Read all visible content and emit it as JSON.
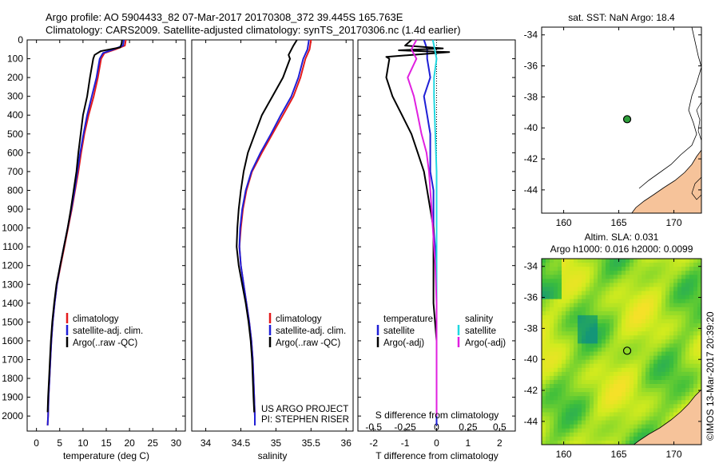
{
  "header": {
    "line1": "Argo profile: AO 5904433_82 07-Mar-2017 20170308_372 39.445S 165.763E",
    "line2": "Climatology: CARS2009. Satellite-adjusted climatology: synTS_20170306.nc (1.4d earlier)"
  },
  "colors": {
    "climatology": "#e41a1c",
    "satellite": "#1f1fd6",
    "argo": "#000000",
    "salinity_satellite": "#20d8e0",
    "salinity_argo": "#e020e0",
    "land": "#f6c39a",
    "station_marker": "#2e9e3a"
  },
  "credits": {
    "project": "US ARGO PROJECT",
    "pi": "PI: STEPHEN RISER",
    "imos_stamp": "©IMOS 13-Mar-2017 20:39:20"
  },
  "chart_data": [
    {
      "id": "temperature",
      "type": "line",
      "xlabel": "temperature (deg C)",
      "ylabel": "",
      "xlim": [
        -2,
        32
      ],
      "ylim": [
        2080,
        0
      ],
      "xticks": [
        0,
        5,
        10,
        15,
        20,
        25,
        30
      ],
      "yticks": [
        0,
        100,
        200,
        300,
        400,
        500,
        600,
        700,
        800,
        900,
        1000,
        1100,
        1200,
        1300,
        1400,
        1500,
        1600,
        1700,
        1800,
        1900,
        2000
      ],
      "legend": [
        "climatology",
        "satellite-adj. clim.",
        "Argo(..raw -QC)"
      ],
      "series": [
        {
          "name": "climatology",
          "color": "#e41a1c",
          "points": [
            [
              19.2,
              0
            ],
            [
              19,
              30
            ],
            [
              17,
              50
            ],
            [
              14.6,
              70
            ],
            [
              13.9,
              100
            ],
            [
              13.2,
              200
            ],
            [
              12.3,
              300
            ],
            [
              11.2,
              400
            ],
            [
              10.3,
              500
            ],
            [
              9.6,
              600
            ],
            [
              9,
              700
            ],
            [
              8.3,
              800
            ],
            [
              7.6,
              900
            ],
            [
              6.8,
              1000
            ],
            [
              6,
              1100
            ],
            [
              5.2,
              1200
            ],
            [
              4.4,
              1300
            ],
            [
              3.9,
              1400
            ],
            [
              3.5,
              1500
            ],
            [
              3.2,
              1600
            ],
            [
              3,
              1700
            ],
            [
              2.8,
              1800
            ],
            [
              2.6,
              1900
            ],
            [
              2.5,
              2000
            ],
            [
              2.4,
              2050
            ]
          ]
        },
        {
          "name": "satellite-adj. clim.",
          "color": "#1f1fd6",
          "points": [
            [
              18.8,
              0
            ],
            [
              18.6,
              30
            ],
            [
              16.6,
              50
            ],
            [
              14.3,
              70
            ],
            [
              13.6,
              100
            ],
            [
              12.9,
              200
            ],
            [
              11.9,
              300
            ],
            [
              10.9,
              400
            ],
            [
              10.1,
              500
            ],
            [
              9.4,
              600
            ],
            [
              8.8,
              700
            ],
            [
              8.2,
              800
            ],
            [
              7.5,
              900
            ],
            [
              6.7,
              1000
            ],
            [
              5.9,
              1100
            ],
            [
              5.1,
              1200
            ],
            [
              4.4,
              1300
            ],
            [
              3.9,
              1400
            ],
            [
              3.5,
              1500
            ],
            [
              3.2,
              1600
            ],
            [
              3,
              1700
            ],
            [
              2.8,
              1800
            ],
            [
              2.6,
              1900
            ],
            [
              2.5,
              2000
            ],
            [
              2.4,
              2050
            ]
          ]
        },
        {
          "name": "Argo(..raw -QC)",
          "color": "#000000",
          "points": [
            [
              18.4,
              0
            ],
            [
              18.3,
              20
            ],
            [
              18,
              40
            ],
            [
              13.8,
              60
            ],
            [
              12.5,
              80
            ],
            [
              12.2,
              100
            ],
            [
              11.5,
              200
            ],
            [
              10.9,
              300
            ],
            [
              10,
              400
            ],
            [
              9.5,
              500
            ],
            [
              9,
              600
            ],
            [
              8.6,
              700
            ],
            [
              8,
              800
            ],
            [
              7.4,
              900
            ],
            [
              6.7,
              1000
            ],
            [
              5.9,
              1100
            ],
            [
              5.1,
              1200
            ],
            [
              4.3,
              1300
            ],
            [
              3.8,
              1400
            ],
            [
              3.4,
              1500
            ],
            [
              3.1,
              1600
            ],
            [
              2.9,
              1700
            ],
            [
              2.7,
              1800
            ],
            [
              2.5,
              1900
            ],
            [
              2.4,
              1980
            ]
          ]
        }
      ]
    },
    {
      "id": "salinity",
      "type": "line",
      "xlabel": "salinity",
      "ylabel": "",
      "xlim": [
        33.8,
        36.1
      ],
      "ylim": [
        2080,
        0
      ],
      "xticks": [
        34,
        34.5,
        35,
        35.5,
        36
      ],
      "xticklabels": [
        "34",
        "34.5",
        "35",
        "35.5",
        "36"
      ],
      "legend": [
        "climatology",
        "satellite-adj. clim.",
        "Argo(..raw -QC)"
      ],
      "series": [
        {
          "name": "climatology",
          "color": "#e41a1c",
          "points": [
            [
              35.5,
              0
            ],
            [
              35.48,
              50
            ],
            [
              35.42,
              100
            ],
            [
              35.35,
              200
            ],
            [
              35.25,
              300
            ],
            [
              35.1,
              400
            ],
            [
              34.95,
              500
            ],
            [
              34.8,
              600
            ],
            [
              34.66,
              700
            ],
            [
              34.58,
              800
            ],
            [
              34.53,
              900
            ],
            [
              34.5,
              1000
            ],
            [
              34.48,
              1100
            ],
            [
              34.5,
              1200
            ],
            [
              34.54,
              1300
            ],
            [
              34.58,
              1400
            ],
            [
              34.62,
              1500
            ],
            [
              34.65,
              1600
            ],
            [
              34.67,
              1700
            ],
            [
              34.68,
              1800
            ],
            [
              34.69,
              1900
            ],
            [
              34.7,
              2000
            ],
            [
              34.7,
              2050
            ]
          ]
        },
        {
          "name": "satellite-adj. clim.",
          "color": "#1f1fd6",
          "points": [
            [
              35.47,
              0
            ],
            [
              35.45,
              50
            ],
            [
              35.39,
              100
            ],
            [
              35.32,
              200
            ],
            [
              35.22,
              300
            ],
            [
              35.07,
              400
            ],
            [
              34.93,
              500
            ],
            [
              34.78,
              600
            ],
            [
              34.65,
              700
            ],
            [
              34.57,
              800
            ],
            [
              34.52,
              900
            ],
            [
              34.49,
              1000
            ],
            [
              34.48,
              1100
            ],
            [
              34.5,
              1200
            ],
            [
              34.54,
              1300
            ],
            [
              34.58,
              1400
            ],
            [
              34.62,
              1500
            ],
            [
              34.65,
              1600
            ],
            [
              34.67,
              1700
            ],
            [
              34.68,
              1800
            ],
            [
              34.69,
              1900
            ],
            [
              34.7,
              2000
            ],
            [
              34.7,
              2050
            ]
          ]
        },
        {
          "name": "Argo(..raw -QC)",
          "color": "#000000",
          "points": [
            [
              35.3,
              0
            ],
            [
              35.25,
              30
            ],
            [
              35.18,
              80
            ],
            [
              35.2,
              100
            ],
            [
              35.1,
              200
            ],
            [
              34.95,
              300
            ],
            [
              34.8,
              400
            ],
            [
              34.7,
              500
            ],
            [
              34.6,
              600
            ],
            [
              34.54,
              700
            ],
            [
              34.5,
              800
            ],
            [
              34.47,
              900
            ],
            [
              34.45,
              1000
            ],
            [
              34.44,
              1100
            ],
            [
              34.47,
              1200
            ],
            [
              34.52,
              1300
            ],
            [
              34.57,
              1400
            ],
            [
              34.61,
              1500
            ],
            [
              34.64,
              1600
            ],
            [
              34.66,
              1700
            ],
            [
              34.67,
              1800
            ],
            [
              34.68,
              1900
            ],
            [
              34.69,
              1980
            ]
          ]
        }
      ]
    },
    {
      "id": "differences",
      "type": "line",
      "xlabel": "T difference from climatology",
      "ylabel": "",
      "top_axis_label": "S difference from climatology",
      "xlim": [
        -2.5,
        2.5
      ],
      "ylim": [
        2080,
        0
      ],
      "xticks": [
        -2,
        -1,
        0,
        1,
        2
      ],
      "top_ticks": [
        -0.5,
        -0.25,
        0,
        0.25,
        0.5
      ],
      "top_ticklabels": [
        "-0.5",
        "-0.25",
        "0",
        "0.25",
        "0.5"
      ],
      "legend_groups": [
        {
          "title": "temperature",
          "entries": [
            "satellite",
            "Argo(-adj)"
          ]
        },
        {
          "title": "salinity",
          "entries": [
            "satellite",
            "Argo(-adj)"
          ]
        }
      ],
      "series": [
        {
          "name": "temperature satellite",
          "color": "#1f1fd6",
          "points": [
            [
              -0.4,
              0
            ],
            [
              -0.3,
              50
            ],
            [
              -0.3,
              100
            ],
            [
              -0.2,
              200
            ],
            [
              -0.4,
              300
            ],
            [
              -0.3,
              400
            ],
            [
              -0.2,
              500
            ],
            [
              -0.2,
              600
            ],
            [
              -0.2,
              700
            ],
            [
              -0.1,
              800
            ],
            [
              -0.1,
              1000
            ],
            [
              0,
              1200
            ],
            [
              0,
              1500
            ],
            [
              0,
              2000
            ],
            [
              0,
              2050
            ]
          ]
        },
        {
          "name": "temperature Argo(-adj)",
          "color": "#000000",
          "points": [
            [
              -0.8,
              0
            ],
            [
              -1,
              30
            ],
            [
              0.2,
              45
            ],
            [
              -1.2,
              55
            ],
            [
              0.4,
              65
            ],
            [
              -1.6,
              90
            ],
            [
              -1.5,
              100
            ],
            [
              -1.6,
              200
            ],
            [
              -1.4,
              300
            ],
            [
              -1.1,
              400
            ],
            [
              -0.8,
              500
            ],
            [
              -0.6,
              600
            ],
            [
              -0.4,
              700
            ],
            [
              -0.3,
              800
            ],
            [
              -0.2,
              900
            ],
            [
              -0.1,
              1000
            ],
            [
              -0.1,
              1200
            ],
            [
              -0.1,
              1400
            ],
            [
              0,
              1600
            ],
            [
              0,
              1800
            ],
            [
              0,
              2000
            ]
          ]
        },
        {
          "name": "salinity satellite",
          "color": "#20d8e0",
          "points": [
            [
              -0.03,
              0
            ],
            [
              0,
              100
            ],
            [
              -0.02,
              200
            ],
            [
              -0.02,
              300
            ],
            [
              -0.01,
              500
            ],
            [
              0,
              700
            ],
            [
              0,
              1000
            ],
            [
              0,
              1500
            ],
            [
              0,
              2000
            ]
          ]
        },
        {
          "name": "salinity Argo(-adj)",
          "color": "#e020e0",
          "points": [
            [
              -0.16,
              0
            ],
            [
              -0.2,
              50
            ],
            [
              -0.16,
              100
            ],
            [
              -0.23,
              200
            ],
            [
              -0.18,
              300
            ],
            [
              -0.15,
              400
            ],
            [
              -0.12,
              500
            ],
            [
              -0.08,
              600
            ],
            [
              -0.06,
              700
            ],
            [
              -0.05,
              800
            ],
            [
              -0.04,
              900
            ],
            [
              -0.03,
              1000
            ],
            [
              -0.02,
              1100
            ],
            [
              -0.01,
              1200
            ],
            [
              0,
              1400
            ],
            [
              0,
              1600
            ],
            [
              0,
              2000
            ]
          ]
        }
      ]
    },
    {
      "id": "sst_map",
      "type": "map",
      "title": "sat. SST: NaN Argo: 18.4",
      "xlim": [
        158,
        172.5
      ],
      "ylim": [
        -45.5,
        -33.5
      ],
      "xticks": [
        160,
        165,
        170
      ],
      "yticks": [
        -34,
        -36,
        -38,
        -40,
        -42,
        -44
      ],
      "marker": {
        "lon": 165.76,
        "lat": -39.44
      }
    },
    {
      "id": "sla_map",
      "type": "heatmap",
      "title": "Altim. SLA: 0.031",
      "subtitle": "Argo h1000: 0.016 h2000: 0.0099",
      "xlim": [
        158,
        172.5
      ],
      "ylim": [
        -45.5,
        -33.5
      ],
      "xticks": [
        160,
        165,
        170
      ],
      "yticks": [
        -34,
        -36,
        -38,
        -40,
        -42,
        -44
      ],
      "marker": {
        "lon": 165.76,
        "lat": -39.44
      }
    }
  ]
}
